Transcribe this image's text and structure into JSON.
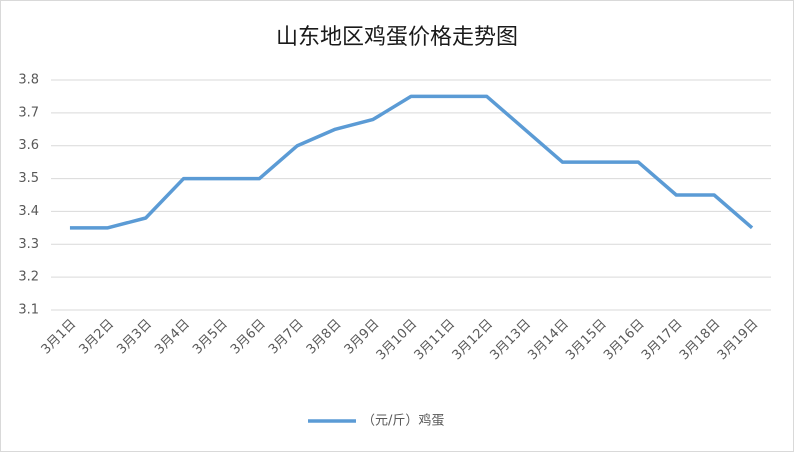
{
  "chart_data": {
    "type": "line",
    "title": "山东地区鸡蛋价格走势图",
    "categories": [
      "3月1日",
      "3月2日",
      "3月3日",
      "3月4日",
      "3月5日",
      "3月6日",
      "3月7日",
      "3月8日",
      "3月9日",
      "3月10日",
      "3月11日",
      "3月12日",
      "3月13日",
      "3月14日",
      "3月15日",
      "3月16日",
      "3月17日",
      "3月18日",
      "3月19日"
    ],
    "series": [
      {
        "name": "（元/斤）鸡蛋",
        "color": "#5b9bd5",
        "values": [
          3.35,
          3.35,
          3.38,
          3.5,
          3.5,
          3.5,
          3.6,
          3.65,
          3.68,
          3.75,
          3.75,
          3.75,
          3.65,
          3.55,
          3.55,
          3.55,
          3.45,
          3.45,
          3.35
        ]
      }
    ],
    "ylim": [
      3.1,
      3.8
    ],
    "yticks": [
      3.1,
      3.2,
      3.3,
      3.4,
      3.5,
      3.6,
      3.7,
      3.8
    ],
    "grid": true,
    "legend": "bottom"
  }
}
